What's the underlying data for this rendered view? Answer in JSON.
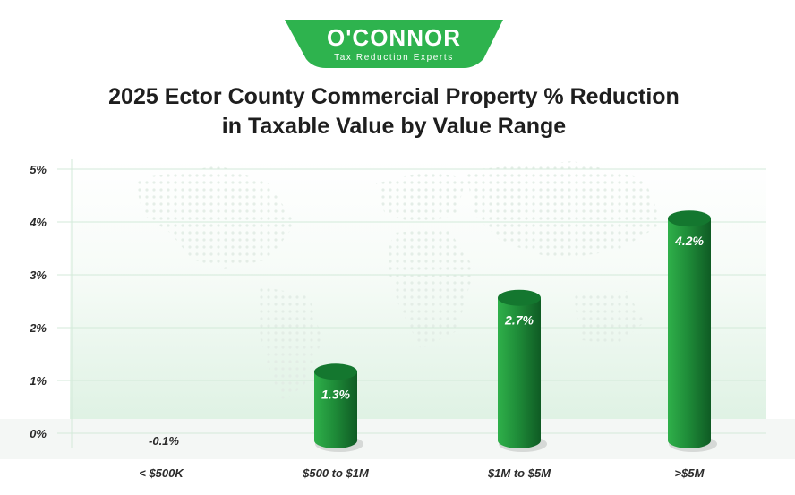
{
  "logo": {
    "brand": "O'CONNOR",
    "tagline": "Tax Reduction Experts"
  },
  "chart_data": {
    "type": "bar",
    "title_lines": [
      "2025 Ector County Commercial Property % Reduction",
      "in Taxable Value by Value Range"
    ],
    "categories": [
      "< $500K",
      "$500 to $1M",
      "$1M to $5M",
      ">$5M"
    ],
    "values": [
      -0.1,
      1.3,
      2.7,
      4.2
    ],
    "value_labels": [
      "-0.1%",
      "1.3%",
      "2.7%",
      "4.2%"
    ],
    "y_ticks": [
      "0%",
      "1%",
      "2%",
      "3%",
      "4%",
      "5%"
    ],
    "ylim": [
      0,
      5
    ],
    "xlabel": "",
    "ylabel": "",
    "grid": true,
    "colors": {
      "bar_light": "#2fb04a",
      "bar_dark": "#0f5b24",
      "bar_top": "#14772f",
      "brand_green": "#2eb34e",
      "grid": "#d3ead9"
    }
  }
}
